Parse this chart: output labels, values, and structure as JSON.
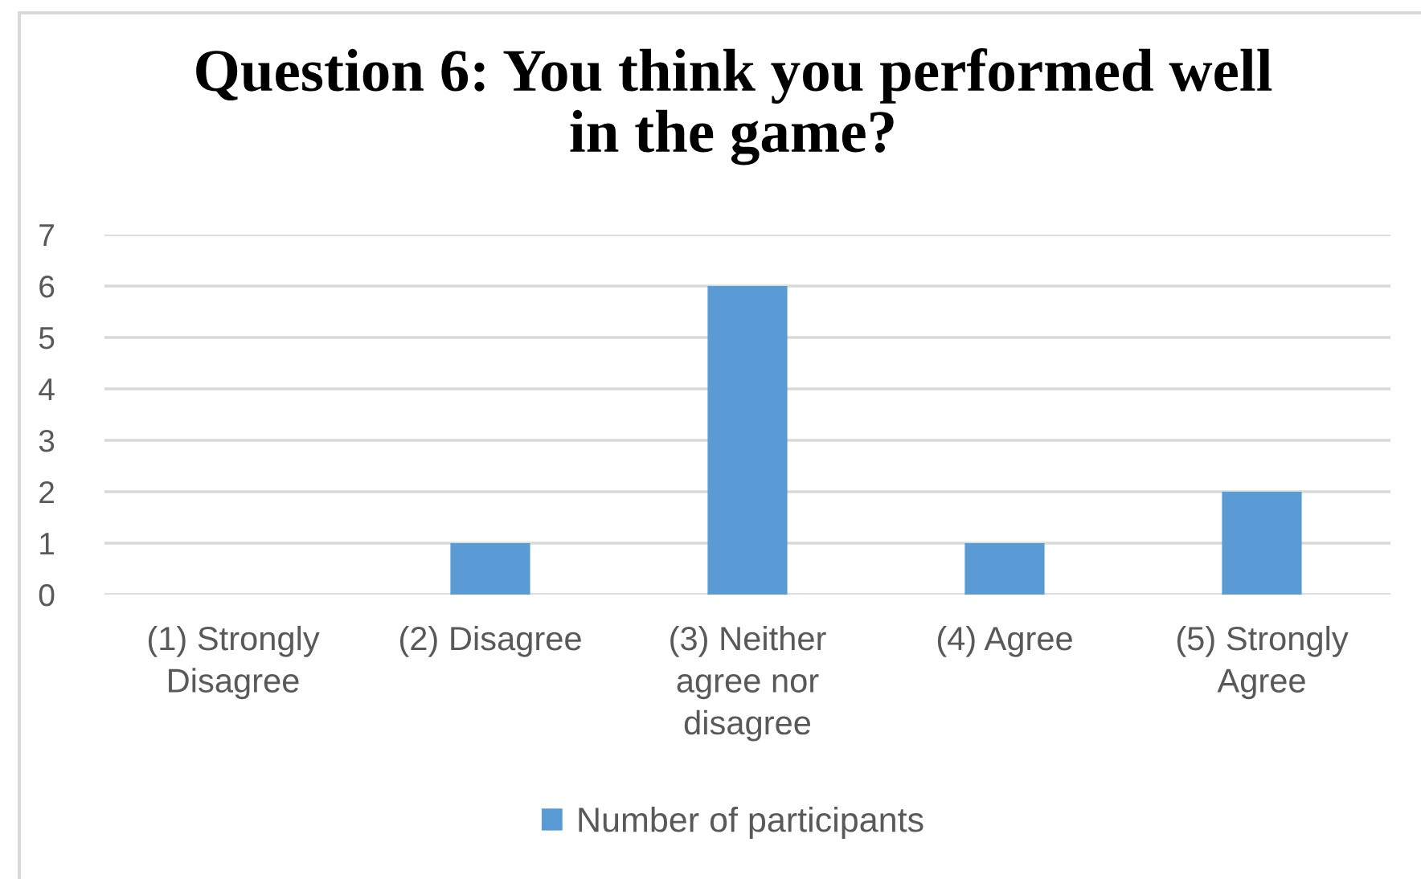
{
  "chart_data": {
    "type": "bar",
    "title": "Question 6: You think you performed well\nin the game?",
    "categories": [
      "(1) Strongly\nDisagree",
      "(2) Disagree",
      "(3) Neither\nagree nor\ndisagree",
      "(4) Agree",
      "(5) Strongly\nAgree"
    ],
    "series": [
      {
        "name": "Number of participants",
        "color": "#5b9bd5",
        "values": [
          0,
          1,
          6,
          1,
          2
        ]
      }
    ],
    "ylim": [
      0,
      7
    ],
    "yticks": [
      0,
      1,
      2,
      3,
      4,
      5,
      6,
      7
    ],
    "grid": "y",
    "legend": "bottom"
  }
}
